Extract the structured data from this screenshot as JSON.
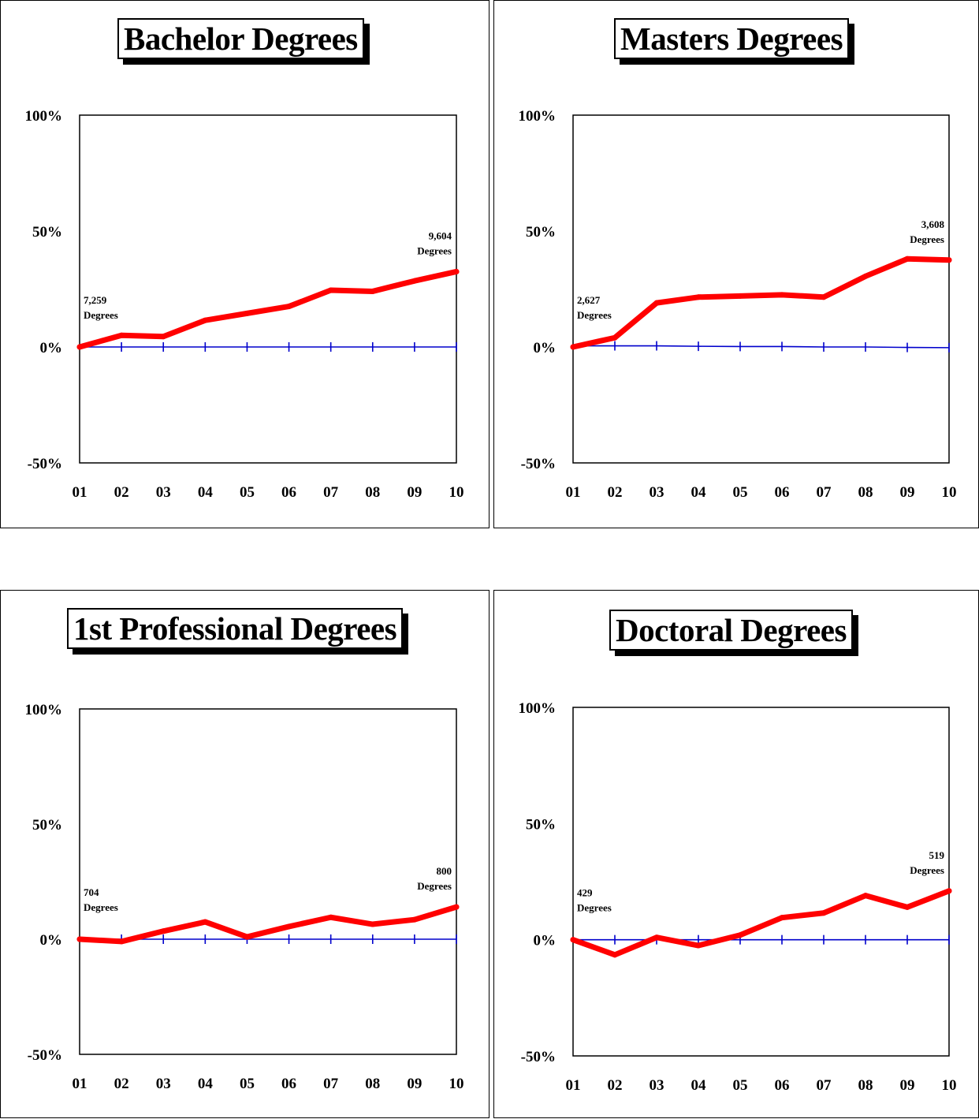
{
  "chart_data": [
    {
      "type": "line",
      "title": "Bachelor Degrees",
      "categories": [
        "01",
        "02",
        "03",
        "04",
        "05",
        "06",
        "07",
        "08",
        "09",
        "10"
      ],
      "y_ticks": [
        "100%",
        "50%",
        "0%",
        "-50%"
      ],
      "ylim": [
        -50,
        100
      ],
      "series": [
        {
          "role": "change",
          "color": "#ff0000",
          "values": [
            0,
            5,
            4.5,
            11.5,
            14.5,
            17.5,
            24.5,
            24,
            28.5,
            32.5
          ]
        },
        {
          "role": "baseline",
          "color": "#0000cc",
          "values": [
            0,
            0,
            0,
            0,
            0,
            0,
            0,
            0,
            0,
            0
          ]
        }
      ],
      "annotations": {
        "start": {
          "value": "7,259",
          "unit": "Degrees"
        },
        "end": {
          "value": "9,604",
          "unit": "Degrees"
        }
      }
    },
    {
      "type": "line",
      "title": "Masters Degrees",
      "categories": [
        "01",
        "02",
        "03",
        "04",
        "05",
        "06",
        "07",
        "08",
        "09",
        "10"
      ],
      "y_ticks": [
        "100%",
        "50%",
        "0%",
        "-50%"
      ],
      "ylim": [
        -50,
        100
      ],
      "series": [
        {
          "role": "change",
          "color": "#ff0000",
          "values": [
            0,
            4,
            19,
            21.5,
            22,
            22.5,
            21.5,
            30.5,
            38,
            37.5
          ]
        },
        {
          "role": "baseline",
          "color": "#0000cc",
          "values": [
            0.5,
            0.5,
            0.5,
            0.3,
            0.2,
            0.2,
            0,
            0,
            -0.2,
            -0.3
          ]
        }
      ],
      "annotations": {
        "start": {
          "value": "2,627",
          "unit": "Degrees"
        },
        "end": {
          "value": "3,608",
          "unit": "Degrees"
        }
      }
    },
    {
      "type": "line",
      "title": "1st Professional Degrees",
      "categories": [
        "01",
        "02",
        "03",
        "04",
        "05",
        "06",
        "07",
        "08",
        "09",
        "10"
      ],
      "y_ticks": [
        "100%",
        "50%",
        "0%",
        "-50%"
      ],
      "ylim": [
        -50,
        100
      ],
      "series": [
        {
          "role": "change",
          "color": "#ff0000",
          "values": [
            0,
            -1,
            3.5,
            7.5,
            1,
            5.5,
            9.5,
            6.5,
            8.5,
            14
          ]
        },
        {
          "role": "baseline",
          "color": "#0000cc",
          "values": [
            0,
            0,
            0,
            0,
            0,
            0,
            0,
            0,
            0,
            0
          ]
        }
      ],
      "annotations": {
        "start": {
          "value": "704",
          "unit": "Degrees"
        },
        "end": {
          "value": "800",
          "unit": "Degrees"
        }
      }
    },
    {
      "type": "line",
      "title": "Doctoral Degrees",
      "categories": [
        "01",
        "02",
        "03",
        "04",
        "05",
        "06",
        "07",
        "08",
        "09",
        "10"
      ],
      "y_ticks": [
        "100%",
        "50%",
        "0%",
        "-50%"
      ],
      "ylim": [
        -50,
        100
      ],
      "series": [
        {
          "role": "change",
          "color": "#ff0000",
          "values": [
            0,
            -6.5,
            1,
            -2.5,
            2,
            9.5,
            11.5,
            19,
            14,
            21
          ]
        },
        {
          "role": "baseline",
          "color": "#0000cc",
          "values": [
            0,
            0,
            0,
            0,
            0,
            0,
            0,
            0,
            0,
            0
          ]
        }
      ],
      "annotations": {
        "start": {
          "value": "429",
          "unit": "Degrees"
        },
        "end": {
          "value": "519",
          "unit": "Degrees"
        }
      }
    }
  ]
}
